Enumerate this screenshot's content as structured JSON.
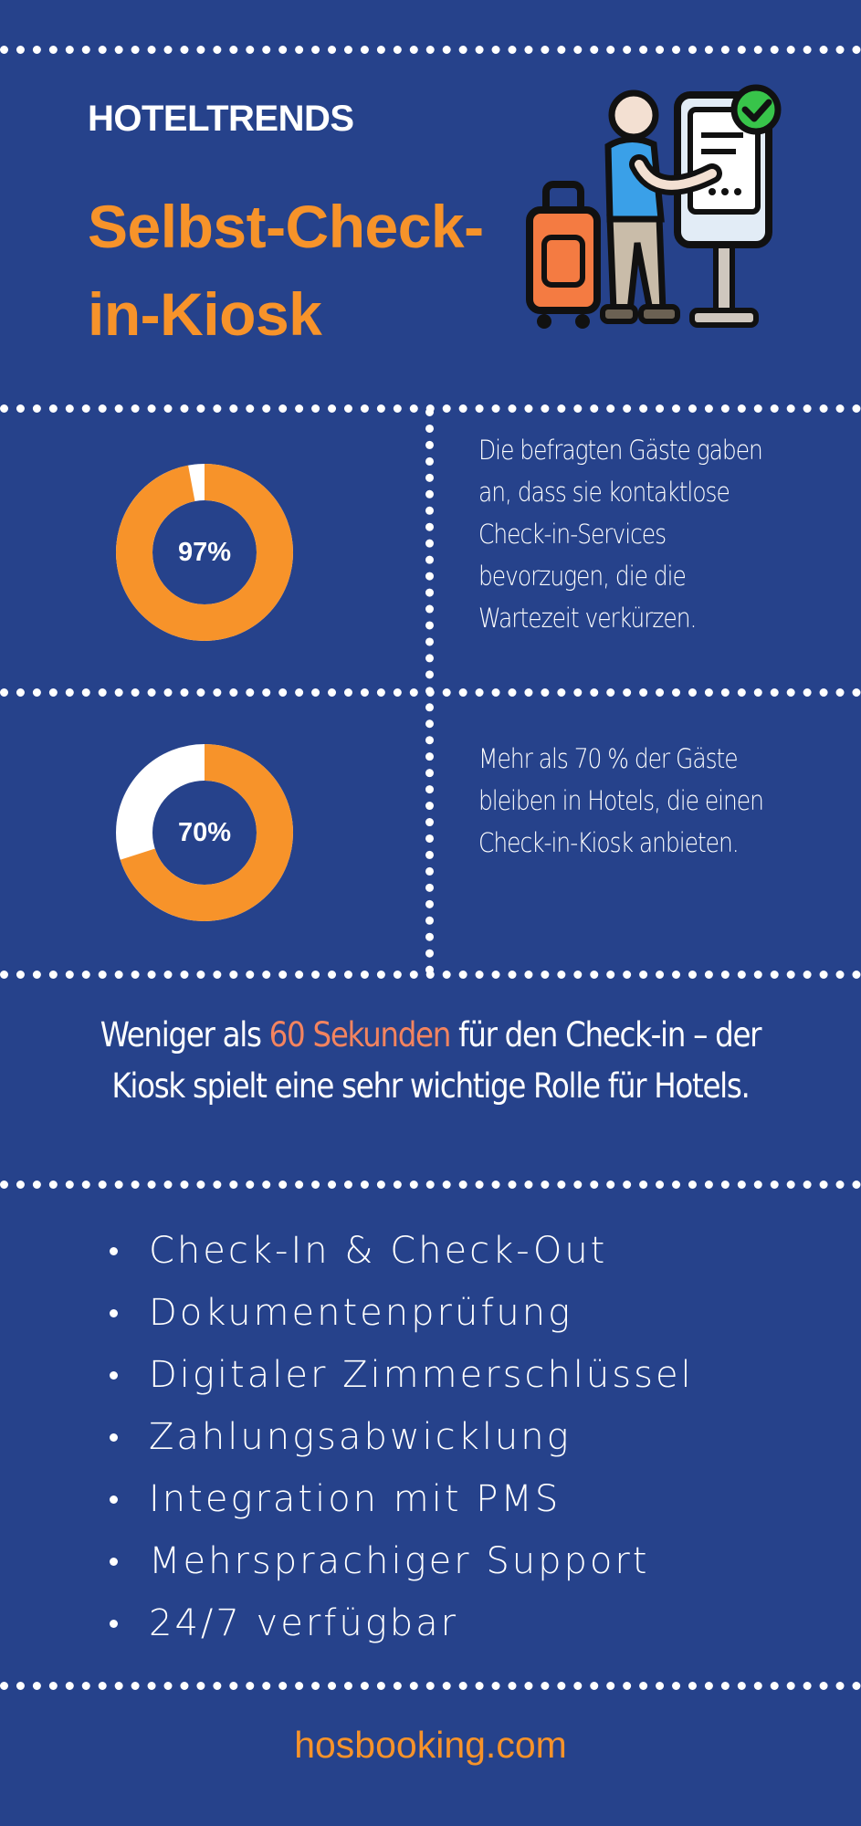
{
  "header": {
    "eyebrow": "HOTELTRENDS",
    "title": "Selbst-Check-in-Kiosk",
    "illustration_icon": "kiosk-check-in-icon"
  },
  "stats": [
    {
      "percent_label": "97%",
      "value": 97,
      "text": "Die befragten Gäste gaben an, dass sie kontaktlose Check-in-Services bevorzugen, die die Wartezeit verkürzen."
    },
    {
      "percent_label": "70%",
      "value": 70,
      "text": "Mehr als 70 % der Gäste bleiben in Hotels, die einen Check-in-Kiosk anbieten."
    }
  ],
  "claim": {
    "before": "Weniger als ",
    "highlight": "60 Sekunden",
    "after": " für den Check-in – der Kiosk spielt eine sehr wichtige Rolle für Hotels."
  },
  "features": [
    "Check-In & Check-Out",
    "Dokumentenprüfung",
    "Digitaler Zimmerschlüssel",
    "Zahlungsabwicklung",
    "Integration mit PMS",
    "Mehrsprachiger Support",
    "24/7 verfügbar"
  ],
  "footer": "hosbooking.com",
  "colors": {
    "background": "#26428b",
    "accent": "#f7932a",
    "highlight": "#f4845f",
    "track": "#ffffff"
  }
}
